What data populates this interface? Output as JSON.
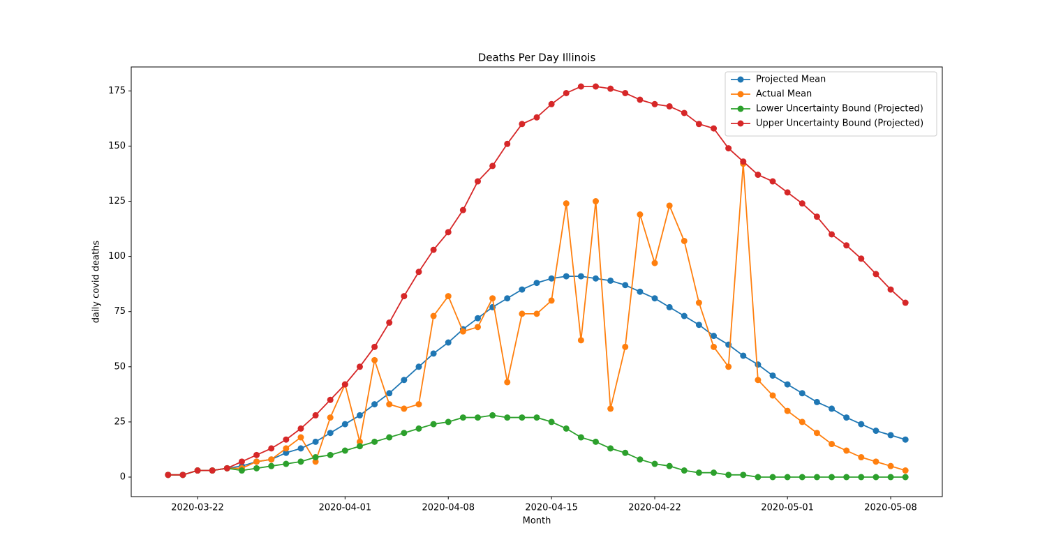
{
  "chart_data": {
    "type": "line",
    "title": "Deaths Per Day Illinois",
    "x_label": "Month",
    "y_label": "daily covid deaths",
    "x": [
      "2020-03-20",
      "2020-03-21",
      "2020-03-22",
      "2020-03-23",
      "2020-03-24",
      "2020-03-25",
      "2020-03-26",
      "2020-03-27",
      "2020-03-28",
      "2020-03-29",
      "2020-03-30",
      "2020-03-31",
      "2020-04-01",
      "2020-04-02",
      "2020-04-03",
      "2020-04-04",
      "2020-04-05",
      "2020-04-06",
      "2020-04-07",
      "2020-04-08",
      "2020-04-09",
      "2020-04-10",
      "2020-04-11",
      "2020-04-12",
      "2020-04-13",
      "2020-04-14",
      "2020-04-15",
      "2020-04-16",
      "2020-04-17",
      "2020-04-18",
      "2020-04-19",
      "2020-04-20",
      "2020-04-21",
      "2020-04-22",
      "2020-04-23",
      "2020-04-24",
      "2020-04-25",
      "2020-04-26",
      "2020-04-27",
      "2020-04-28",
      "2020-04-29",
      "2020-04-30",
      "2020-05-01",
      "2020-05-02",
      "2020-05-03",
      "2020-05-04",
      "2020-05-05",
      "2020-05-06",
      "2020-05-07",
      "2020-05-08",
      "2020-05-09"
    ],
    "series": [
      {
        "name": "Projected Mean",
        "color": "#1f77b4",
        "values": [
          1,
          1,
          3,
          3,
          4,
          5,
          7,
          8,
          11,
          13,
          16,
          20,
          24,
          28,
          33,
          38,
          44,
          50,
          56,
          61,
          67,
          72,
          77,
          81,
          85,
          88,
          90,
          91,
          91,
          90,
          89,
          87,
          84,
          81,
          77,
          73,
          69,
          64,
          60,
          55,
          51,
          46,
          42,
          38,
          34,
          31,
          27,
          24,
          21,
          19,
          17
        ]
      },
      {
        "name": "Actual Mean",
        "color": "#ff7f0e",
        "values": [
          1,
          1,
          3,
          3,
          4,
          4,
          7,
          8,
          13,
          18,
          7,
          27,
          42,
          16,
          53,
          33,
          31,
          33,
          73,
          82,
          66,
          68,
          81,
          43,
          74,
          74,
          80,
          124,
          62,
          125,
          31,
          59,
          119,
          97,
          123,
          107,
          79,
          59,
          50,
          142,
          44,
          37,
          30,
          25,
          20,
          15,
          12,
          9,
          7,
          5,
          3
        ]
      },
      {
        "name": "Lower Uncertainty Bound (Projected)",
        "color": "#2ca02c",
        "values": [
          1,
          1,
          3,
          3,
          4,
          3,
          4,
          5,
          6,
          7,
          9,
          10,
          12,
          14,
          16,
          18,
          20,
          22,
          24,
          25,
          27,
          27,
          28,
          27,
          27,
          27,
          25,
          22,
          18,
          16,
          13,
          11,
          8,
          6,
          5,
          3,
          2,
          2,
          1,
          1,
          0,
          0,
          0,
          0,
          0,
          0,
          0,
          0,
          0,
          0,
          0
        ]
      },
      {
        "name": "Upper Uncertainty Bound (Projected)",
        "color": "#d62728",
        "values": [
          1,
          1,
          3,
          3,
          4,
          7,
          10,
          13,
          17,
          22,
          28,
          35,
          42,
          50,
          59,
          70,
          82,
          93,
          103,
          111,
          121,
          134,
          141,
          151,
          160,
          163,
          169,
          174,
          177,
          177,
          176,
          174,
          171,
          169,
          168,
          165,
          160,
          158,
          149,
          143,
          137,
          134,
          129,
          124,
          118,
          110,
          105,
          99,
          92,
          85,
          79
        ]
      }
    ],
    "xlim": [
      "2020-03-17T12:00",
      "2020-05-11T12:00"
    ],
    "xticks": [
      "2020-03-22",
      "2020-04-01",
      "2020-04-08",
      "2020-04-15",
      "2020-04-22",
      "2020-05-01",
      "2020-05-08"
    ],
    "ylim": [
      -8.85,
      185.85
    ],
    "yticks": [
      0,
      25,
      50,
      75,
      100,
      125,
      150,
      175
    ],
    "legend": "upper right"
  }
}
